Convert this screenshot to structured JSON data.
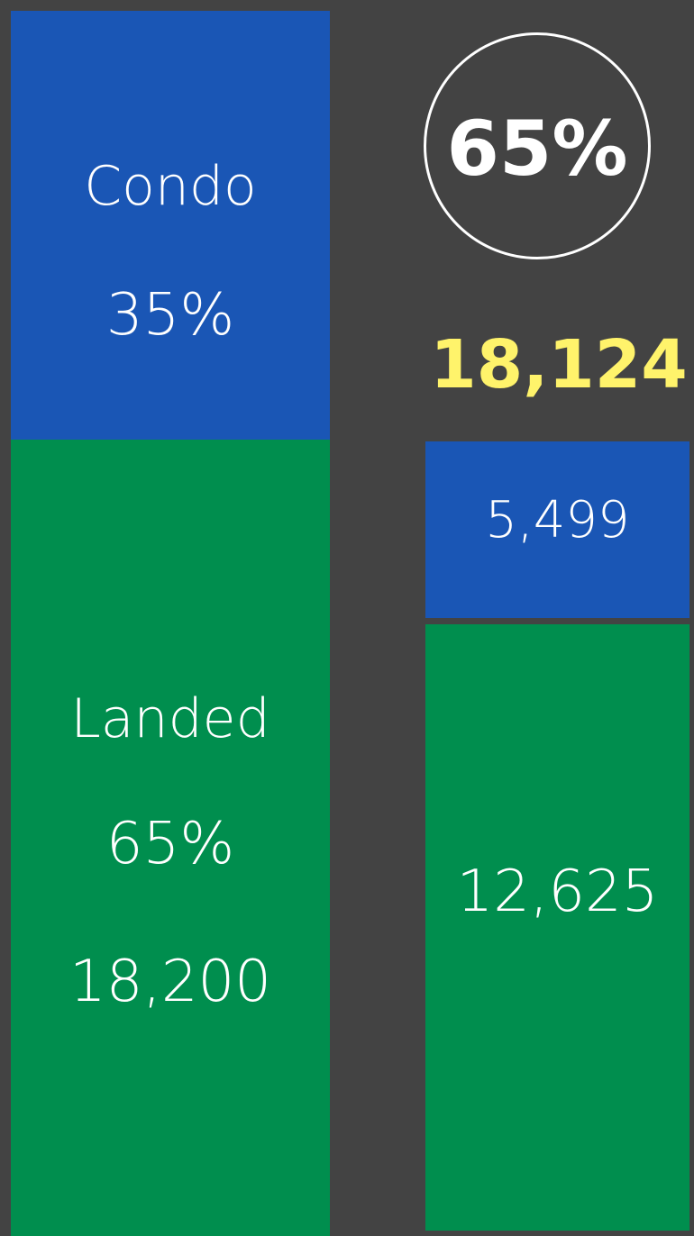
{
  "left": {
    "segments": [
      {
        "label": "Condo",
        "share": "35%"
      },
      {
        "label": "Landed",
        "share": "65%",
        "count": "18,200"
      }
    ]
  },
  "right": {
    "badge": "65%",
    "total": "18,124",
    "segments": [
      "5,499",
      "12,625"
    ]
  }
}
